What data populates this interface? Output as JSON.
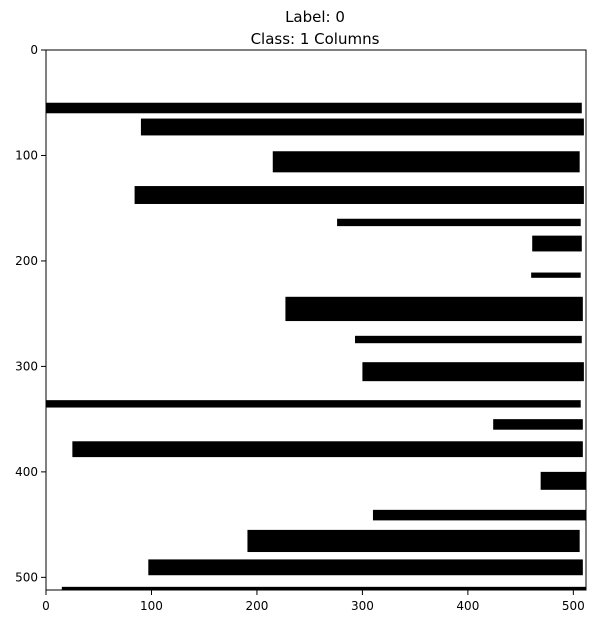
{
  "chart_data": {
    "type": "heatmap",
    "title_lines": [
      "Label: 0",
      "Class: 1 Columns"
    ],
    "xlabel": "",
    "ylabel": "",
    "xlim": [
      0,
      512
    ],
    "ylim": [
      512,
      0
    ],
    "x_ticks": [
      0,
      100,
      200,
      300,
      400,
      500
    ],
    "y_ticks": [
      0,
      100,
      200,
      300,
      400,
      500
    ],
    "grid": false,
    "colors": {
      "background": "#ffffff",
      "bar": "#000000",
      "frame": "#000000"
    },
    "bars": [
      {
        "x0": 0,
        "x1": 508,
        "y0": 50,
        "y1": 60
      },
      {
        "x0": 90,
        "x1": 510,
        "y0": 65,
        "y1": 81
      },
      {
        "x0": 215,
        "x1": 506,
        "y0": 96,
        "y1": 116
      },
      {
        "x0": 84,
        "x1": 510,
        "y0": 129,
        "y1": 146
      },
      {
        "x0": 276,
        "x1": 507,
        "y0": 160,
        "y1": 167
      },
      {
        "x0": 461,
        "x1": 508,
        "y0": 176,
        "y1": 191
      },
      {
        "x0": 460,
        "x1": 507,
        "y0": 211,
        "y1": 216
      },
      {
        "x0": 227,
        "x1": 509,
        "y0": 234,
        "y1": 257
      },
      {
        "x0": 293,
        "x1": 508,
        "y0": 271,
        "y1": 278
      },
      {
        "x0": 300,
        "x1": 510,
        "y0": 296,
        "y1": 314
      },
      {
        "x0": 0,
        "x1": 507,
        "y0": 332,
        "y1": 339
      },
      {
        "x0": 424,
        "x1": 509,
        "y0": 350,
        "y1": 360
      },
      {
        "x0": 25,
        "x1": 509,
        "y0": 371,
        "y1": 386
      },
      {
        "x0": 469,
        "x1": 512,
        "y0": 400,
        "y1": 417
      },
      {
        "x0": 310,
        "x1": 512,
        "y0": 436,
        "y1": 446
      },
      {
        "x0": 191,
        "x1": 506,
        "y0": 455,
        "y1": 476
      },
      {
        "x0": 97,
        "x1": 509,
        "y0": 483,
        "y1": 498
      },
      {
        "x0": 15,
        "x1": 512,
        "y0": 509,
        "y1": 512
      }
    ]
  }
}
